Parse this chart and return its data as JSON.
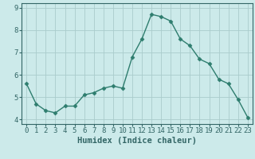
{
  "x": [
    0,
    1,
    2,
    3,
    4,
    5,
    6,
    7,
    8,
    9,
    10,
    11,
    12,
    13,
    14,
    15,
    16,
    17,
    18,
    19,
    20,
    21,
    22,
    23
  ],
  "y": [
    5.6,
    4.7,
    4.4,
    4.3,
    4.6,
    4.6,
    5.1,
    5.2,
    5.4,
    5.5,
    5.4,
    6.8,
    7.6,
    8.7,
    8.6,
    8.4,
    7.6,
    7.3,
    6.7,
    6.5,
    5.8,
    5.6,
    4.9,
    4.1
  ],
  "line_color": "#2e7d6e",
  "marker": "D",
  "marker_size": 2.5,
  "bg_color": "#cceaea",
  "grid_color": "#aacccc",
  "xlabel": "Humidex (Indice chaleur)",
  "xlim": [
    -0.5,
    23.5
  ],
  "ylim": [
    3.8,
    9.2
  ],
  "yticks": [
    4,
    5,
    6,
    7,
    8,
    9
  ],
  "xticks": [
    0,
    1,
    2,
    3,
    4,
    5,
    6,
    7,
    8,
    9,
    10,
    11,
    12,
    13,
    14,
    15,
    16,
    17,
    18,
    19,
    20,
    21,
    22,
    23
  ],
  "xlabel_fontsize": 7.5,
  "tick_fontsize": 6.5,
  "line_width": 1.0,
  "spine_color": "#336666",
  "tick_color": "#336666",
  "label_color": "#336666"
}
